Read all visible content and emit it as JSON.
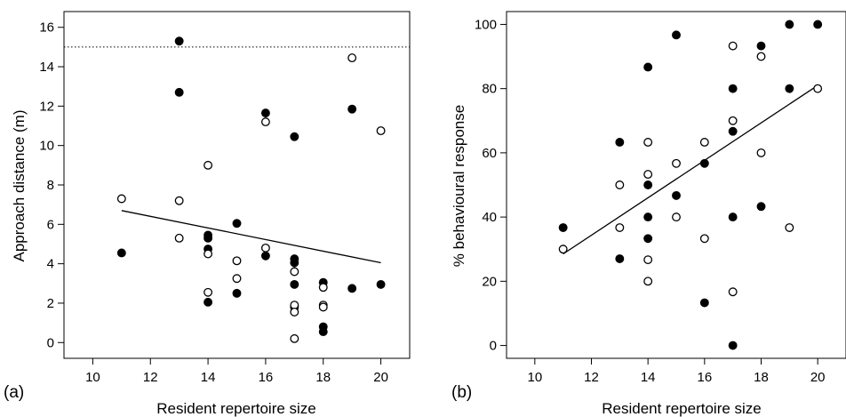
{
  "chart_data": [
    {
      "type": "scatter",
      "panel_label": "(a)",
      "xlabel": "Resident repertoire size",
      "ylabel": "Approach distance (m)",
      "xlim": [
        9,
        21
      ],
      "ylim": [
        -0.8,
        16.8
      ],
      "xticks": [
        10,
        12,
        14,
        16,
        18,
        20
      ],
      "yticks": [
        0,
        2,
        4,
        6,
        8,
        10,
        12,
        14,
        16
      ],
      "xtick_labels": [
        "10",
        "12",
        "14",
        "16",
        "18",
        "20"
      ],
      "ytick_labels": [
        "0",
        "2",
        "4",
        "6",
        "8",
        "10",
        "12",
        "14",
        "16"
      ],
      "grid": false,
      "reference_line": {
        "y": 15,
        "style": "dotted"
      },
      "trend_line": {
        "x": [
          11,
          20
        ],
        "y": [
          6.7,
          4.05
        ]
      },
      "series": [
        {
          "marker": "filled",
          "points": [
            [
              11,
              4.55
            ],
            [
              13,
              15.3
            ],
            [
              13,
              12.7
            ],
            [
              14,
              5.45
            ],
            [
              14,
              5.3
            ],
            [
              14,
              4.75
            ],
            [
              14,
              2.05
            ],
            [
              15,
              6.05
            ],
            [
              15,
              2.5
            ],
            [
              16,
              11.65
            ],
            [
              16,
              4.4
            ],
            [
              17,
              10.45
            ],
            [
              17,
              4.25
            ],
            [
              17,
              4.05
            ],
            [
              17,
              2.95
            ],
            [
              17,
              1.8
            ],
            [
              18,
              3.05
            ],
            [
              18,
              0.8
            ],
            [
              18,
              0.55
            ],
            [
              19,
              11.85
            ],
            [
              19,
              2.75
            ],
            [
              20,
              2.95
            ]
          ]
        },
        {
          "marker": "open",
          "points": [
            [
              11,
              7.3
            ],
            [
              13,
              7.2
            ],
            [
              13,
              5.3
            ],
            [
              14,
              9.0
            ],
            [
              14,
              4.5
            ],
            [
              14,
              2.55
            ],
            [
              15,
              4.15
            ],
            [
              15,
              3.25
            ],
            [
              16,
              11.2
            ],
            [
              16,
              4.8
            ],
            [
              17,
              3.6
            ],
            [
              17,
              1.9
            ],
            [
              17,
              1.55
            ],
            [
              17,
              0.2
            ],
            [
              18,
              2.8
            ],
            [
              18,
              1.9
            ],
            [
              18,
              1.8
            ],
            [
              19,
              14.45
            ],
            [
              20,
              10.75
            ]
          ]
        }
      ]
    },
    {
      "type": "scatter",
      "panel_label": "(b)",
      "xlabel": "Resident repertoire size",
      "ylabel": "% behavioural response",
      "xlim": [
        9,
        21
      ],
      "ylim": [
        -4,
        104
      ],
      "xticks": [
        10,
        12,
        14,
        16,
        18,
        20
      ],
      "yticks": [
        0,
        20,
        40,
        60,
        80,
        100
      ],
      "xtick_labels": [
        "10",
        "12",
        "14",
        "16",
        "18",
        "20"
      ],
      "ytick_labels": [
        "0",
        "20",
        "40",
        "60",
        "80",
        "100"
      ],
      "grid": false,
      "trend_line": {
        "x": [
          11,
          20
        ],
        "y": [
          28.5,
          81
        ]
      },
      "series": [
        {
          "marker": "filled",
          "points": [
            [
              11,
              36.7
            ],
            [
              13,
              63.3
            ],
            [
              13,
              27.0
            ],
            [
              14,
              86.7
            ],
            [
              14,
              50.0
            ],
            [
              14,
              40.0
            ],
            [
              14,
              33.3
            ],
            [
              15,
              96.7
            ],
            [
              15,
              46.7
            ],
            [
              16,
              56.7
            ],
            [
              16,
              13.3
            ],
            [
              17,
              80.0
            ],
            [
              17,
              66.7
            ],
            [
              17,
              40.0
            ],
            [
              17,
              0.0
            ],
            [
              18,
              93.3
            ],
            [
              18,
              43.3
            ],
            [
              19,
              100.0
            ],
            [
              19,
              80.0
            ],
            [
              20,
              100.0
            ]
          ]
        },
        {
          "marker": "open",
          "points": [
            [
              11,
              30.0
            ],
            [
              13,
              50.0
            ],
            [
              13,
              36.7
            ],
            [
              14,
              63.3
            ],
            [
              14,
              53.3
            ],
            [
              14,
              26.7
            ],
            [
              14,
              20.0
            ],
            [
              15,
              56.7
            ],
            [
              15,
              40.0
            ],
            [
              16,
              63.3
            ],
            [
              16,
              33.3
            ],
            [
              17,
              93.3
            ],
            [
              17,
              70.0
            ],
            [
              17,
              16.7
            ],
            [
              18,
              90.0
            ],
            [
              18,
              60.0
            ],
            [
              19,
              36.7
            ],
            [
              20,
              80.0
            ]
          ]
        }
      ]
    }
  ]
}
